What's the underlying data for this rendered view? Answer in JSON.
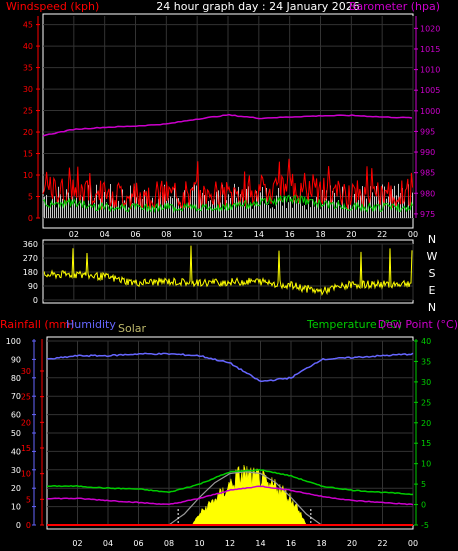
{
  "header": {
    "left_label": "Windspeed (kph)",
    "title": "24 hour graph day : 24 January 2026",
    "right_label": "Barometer (hpa)"
  },
  "x_ticks": [
    "02",
    "04",
    "06",
    "08",
    "10",
    "12",
    "14",
    "16",
    "18",
    "20",
    "22",
    "00"
  ],
  "colors": {
    "wind": "#ff0000",
    "wind_avg": "#00cc00",
    "gust": "#dddddd",
    "baro": "#cc00cc",
    "winddir": "#ffff00",
    "humidity": "#6666ff",
    "temp": "#00cc00",
    "dew": "#cc00cc",
    "rain": "#ff0000",
    "solar": "#ffff00",
    "solar_max": "#888888",
    "grid": "#333333",
    "axis_red": "#ff0000"
  },
  "chart_data": [
    {
      "type": "line",
      "title": "24 hour graph day : 24 January 2026",
      "ylabel": "Windspeed (kph)",
      "ylabel_right": "Barometer (hpa)",
      "yticks_left": [
        "0",
        "5",
        "10",
        "15",
        "20",
        "25",
        "30",
        "35",
        "40",
        "45"
      ],
      "yticks_right": [
        "975",
        "980",
        "985",
        "990",
        "995",
        "1000",
        "1005",
        "1010",
        "1015",
        "1020"
      ],
      "ylim": [
        0,
        47
      ],
      "ylim_right": [
        974,
        1023
      ],
      "x_hours": [
        0,
        2,
        4,
        6,
        8,
        10,
        12,
        14,
        16,
        18,
        20,
        22,
        24
      ],
      "series": [
        {
          "name": "Windspeed (kph)",
          "axis": "left",
          "values": [
            6,
            6,
            5,
            5,
            5,
            5,
            5,
            6,
            7,
            6,
            5,
            5,
            5
          ]
        },
        {
          "name": "Barometer (hpa)",
          "axis": "right",
          "values": [
            994,
            995.5,
            996,
            996.3,
            996.8,
            998,
            999,
            998.2,
            998.5,
            998.8,
            998.9,
            998.5,
            998.3
          ]
        }
      ],
      "grid": true
    },
    {
      "type": "scatter",
      "yticks": [
        "360",
        "270",
        "180",
        "90",
        "0"
      ],
      "compass": [
        "N",
        "W",
        "S",
        "E",
        "N"
      ],
      "ylim": [
        0,
        360
      ],
      "x_hours": [
        0,
        2,
        4,
        6,
        8,
        10,
        12,
        14,
        16,
        18,
        20,
        22,
        24
      ],
      "values": [
        160,
        165,
        150,
        110,
        120,
        110,
        115,
        120,
        95,
        55,
        100,
        100,
        110
      ]
    },
    {
      "type": "line",
      "labels": {
        "rain": "Rainfall (mm)",
        "humidity": "Humidity",
        "solar": "Solar",
        "temp": "Temperature (°C)",
        "dew": "Dew Point (°C)"
      },
      "yticks_rain": [
        "0",
        "5",
        "10",
        "15",
        "20",
        "25",
        "30"
      ],
      "yticks_humidity": [
        "0",
        "10",
        "20",
        "30",
        "40",
        "50",
        "60",
        "70",
        "80",
        "90",
        "100"
      ],
      "yticks_temp": [
        "-5",
        "0",
        "5",
        "10",
        "15",
        "20",
        "25",
        "30",
        "35",
        "40"
      ],
      "ylim_humidity": [
        0,
        100
      ],
      "ylim_temp": [
        -5,
        40
      ],
      "x_hours": [
        0,
        2,
        4,
        6,
        8,
        10,
        12,
        14,
        16,
        18,
        20,
        22,
        24
      ],
      "series": [
        {
          "name": "Humidity",
          "axis": "humidity",
          "values": [
            90,
            92,
            92,
            93,
            93,
            92,
            88,
            78,
            80,
            90,
            91,
            92,
            93
          ]
        },
        {
          "name": "Temperature (°C)",
          "axis": "temp",
          "values": [
            4.5,
            4.5,
            4,
            3.8,
            3,
            5,
            8,
            8.5,
            7,
            4.5,
            3.5,
            3,
            2.5
          ]
        },
        {
          "name": "Dew Point (°C)",
          "axis": "temp",
          "values": [
            1.5,
            1.5,
            1,
            0.5,
            0,
            1.5,
            3.5,
            4.5,
            3.5,
            2,
            1,
            0.5,
            0
          ]
        },
        {
          "name": "Solar",
          "axis": "humidity",
          "hours": [
            9.5,
            10,
            10.5,
            11,
            11.5,
            12,
            12.5,
            13,
            13.5,
            14,
            14.5,
            15,
            15.5,
            16,
            16.5,
            17
          ],
          "values": [
            0,
            6,
            10,
            14,
            17,
            22,
            26,
            28,
            25,
            26,
            20,
            22,
            18,
            14,
            9,
            0
          ]
        },
        {
          "name": "Solar max",
          "axis": "humidity",
          "hours": [
            8,
            9,
            10,
            11,
            12,
            13,
            14,
            15,
            16,
            17,
            18
          ],
          "values": [
            0,
            6,
            15,
            23,
            28,
            29,
            28,
            23,
            15,
            6,
            0
          ]
        },
        {
          "name": "Rainfall (mm)",
          "axis": "rain",
          "values": [
            0,
            0,
            0,
            0,
            0,
            0,
            0,
            0,
            0,
            0,
            0,
            0,
            0
          ]
        }
      ],
      "grid": true
    }
  ]
}
